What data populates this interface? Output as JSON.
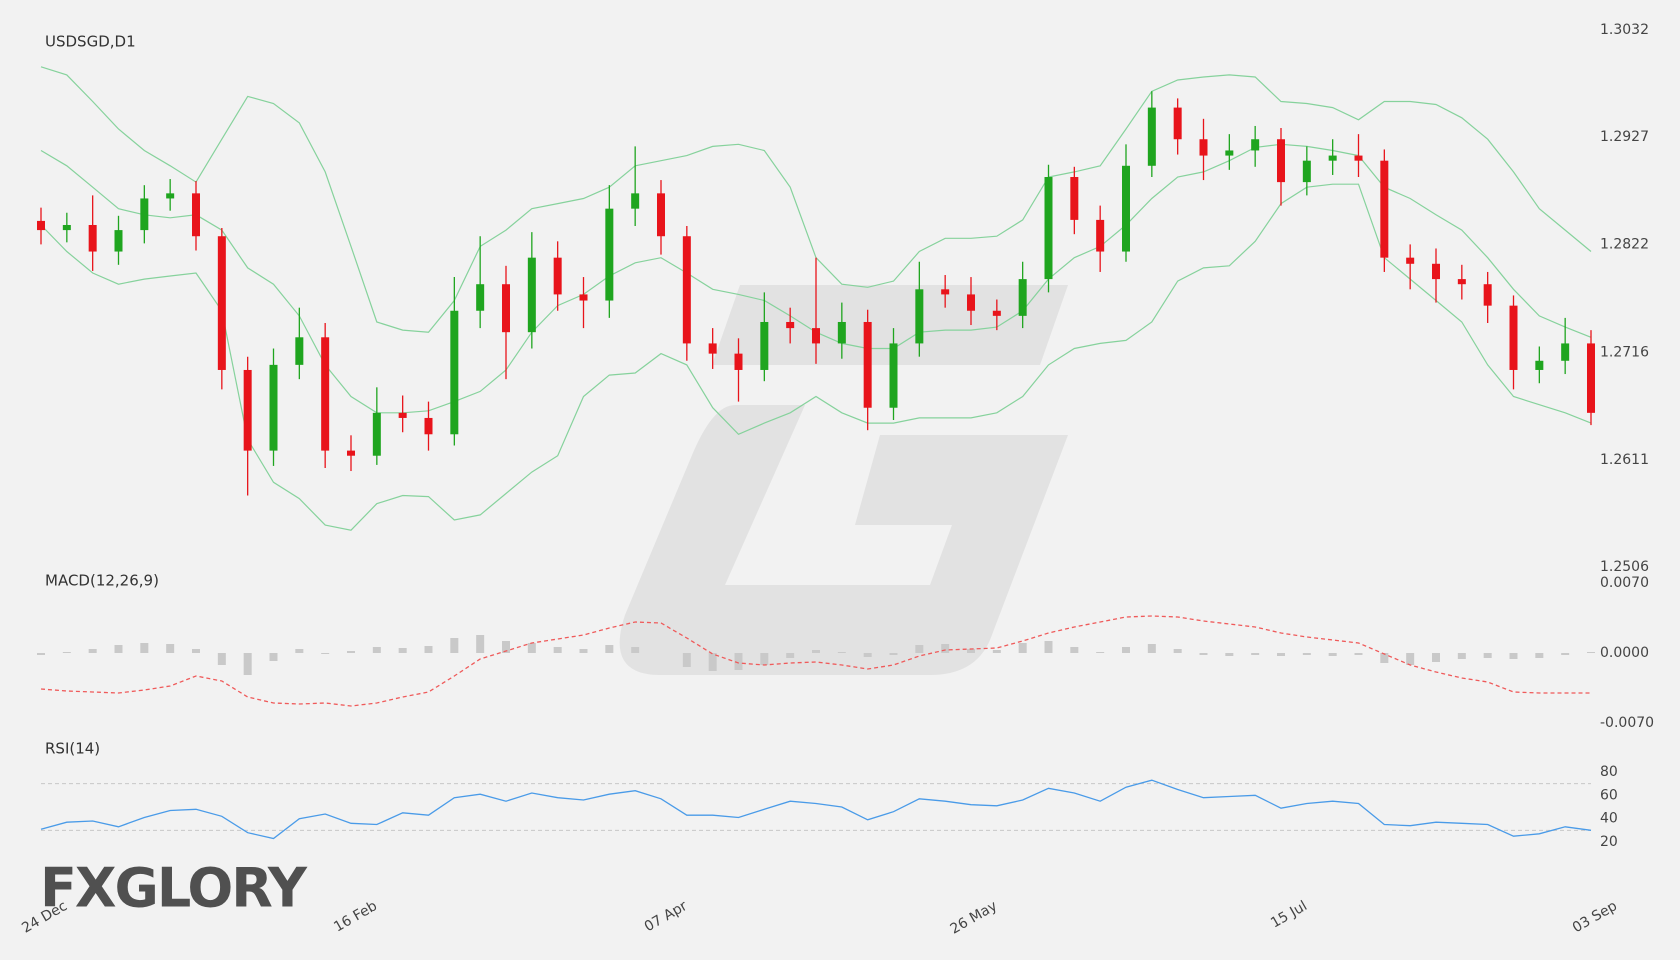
{
  "logo": "FXGLORY",
  "chart_data": [
    {
      "type": "candlestick",
      "title": "USDSGD,D1",
      "categories": [
        "24 Dec",
        null,
        null,
        null,
        null,
        null,
        null,
        null,
        null,
        null,
        null,
        null,
        "16 Feb",
        null,
        null,
        null,
        null,
        null,
        null,
        null,
        null,
        null,
        null,
        null,
        "07 Apr",
        null,
        null,
        null,
        null,
        null,
        null,
        null,
        null,
        null,
        null,
        null,
        "26 May",
        null,
        null,
        null,
        null,
        null,
        null,
        null,
        null,
        null,
        null,
        null,
        "15 Jul",
        null,
        null,
        null,
        null,
        null,
        null,
        null,
        null,
        null,
        null,
        null,
        "03 Sep"
      ],
      "open": [
        1.2845,
        1.2836,
        1.2841,
        1.2815,
        1.2836,
        1.2867,
        1.2872,
        1.283,
        1.2699,
        1.262,
        1.2704,
        1.2731,
        1.262,
        1.2615,
        1.2657,
        1.2652,
        1.2636,
        1.2757,
        1.2783,
        1.2736,
        1.2809,
        1.2773,
        1.2767,
        1.2857,
        1.2872,
        1.283,
        1.2725,
        1.2715,
        1.2699,
        1.2746,
        1.274,
        1.2725,
        1.2746,
        1.2662,
        1.2725,
        1.2778,
        1.2773,
        1.2757,
        1.2752,
        1.2788,
        1.2888,
        1.2846,
        1.2815,
        1.2899,
        1.2956,
        1.2925,
        1.2909,
        1.2914,
        1.2925,
        1.2883,
        1.2904,
        1.2909,
        1.2904,
        1.2809,
        1.2803,
        1.2788,
        1.2783,
        1.2762,
        1.2699,
        1.2708,
        1.2725
      ],
      "high": [
        1.2858,
        1.2853,
        1.287,
        1.285,
        1.288,
        1.2886,
        1.2884,
        1.2838,
        1.2712,
        1.272,
        1.276,
        1.2745,
        1.2635,
        1.2682,
        1.2674,
        1.2668,
        1.279,
        1.283,
        1.2801,
        1.2834,
        1.2825,
        1.279,
        1.288,
        1.2918,
        1.2885,
        1.284,
        1.274,
        1.273,
        1.2775,
        1.276,
        1.2809,
        1.2765,
        1.2758,
        1.274,
        1.2805,
        1.2792,
        1.279,
        1.2768,
        1.2805,
        1.29,
        1.2898,
        1.286,
        1.292,
        1.2972,
        1.2965,
        1.2945,
        1.293,
        1.2938,
        1.2936,
        1.2918,
        1.2925,
        1.293,
        1.2915,
        1.2822,
        1.2818,
        1.2802,
        1.2795,
        1.2772,
        1.2722,
        1.275,
        1.2738
      ],
      "low": [
        1.2822,
        1.2824,
        1.2796,
        1.2802,
        1.2823,
        1.2855,
        1.2816,
        1.268,
        1.2576,
        1.2605,
        1.269,
        1.2603,
        1.26,
        1.2606,
        1.2638,
        1.262,
        1.2625,
        1.274,
        1.269,
        1.272,
        1.2757,
        1.274,
        1.275,
        1.284,
        1.2812,
        1.2708,
        1.27,
        1.2668,
        1.2688,
        1.2725,
        1.2705,
        1.271,
        1.264,
        1.265,
        1.2712,
        1.276,
        1.2743,
        1.2738,
        1.274,
        1.2775,
        1.2832,
        1.2795,
        1.2805,
        1.2888,
        1.291,
        1.2885,
        1.2895,
        1.2898,
        1.286,
        1.287,
        1.289,
        1.2888,
        1.2795,
        1.2778,
        1.2765,
        1.2768,
        1.2745,
        1.268,
        1.2686,
        1.2695,
        1.2645
      ],
      "close": [
        1.2836,
        1.2841,
        1.2815,
        1.2836,
        1.2867,
        1.2872,
        1.283,
        1.2699,
        1.262,
        1.2704,
        1.2731,
        1.262,
        1.2615,
        1.2657,
        1.2652,
        1.2636,
        1.2757,
        1.2783,
        1.2736,
        1.2809,
        1.2773,
        1.2767,
        1.2857,
        1.2872,
        1.283,
        1.2725,
        1.2715,
        1.2699,
        1.2746,
        1.274,
        1.2725,
        1.2746,
        1.2662,
        1.2725,
        1.2778,
        1.2773,
        1.2757,
        1.2752,
        1.2788,
        1.2888,
        1.2846,
        1.2815,
        1.2899,
        1.2956,
        1.2925,
        1.2909,
        1.2914,
        1.2925,
        1.2883,
        1.2904,
        1.2909,
        1.2904,
        1.2809,
        1.2803,
        1.2788,
        1.2783,
        1.2762,
        1.2699,
        1.2708,
        1.2725,
        1.2657
      ],
      "up_color": "#1fa51f",
      "down_color": "#e8141b",
      "bands": {
        "color": "#86d29c",
        "upper": [
          1.2996,
          1.2988,
          1.2962,
          1.2935,
          1.2914,
          1.2899,
          1.2883,
          1.2925,
          1.2967,
          1.296,
          1.2941,
          1.2893,
          1.282,
          1.2746,
          1.2738,
          1.2736,
          1.2767,
          1.282,
          1.2836,
          1.2857,
          1.2862,
          1.2867,
          1.2878,
          1.2899,
          1.2904,
          1.2909,
          1.2918,
          1.292,
          1.2914,
          1.2878,
          1.2809,
          1.2783,
          1.278,
          1.2786,
          1.2815,
          1.2828,
          1.2828,
          1.283,
          1.2846,
          1.2888,
          1.2893,
          1.2899,
          1.2935,
          1.2972,
          1.2983,
          1.2986,
          1.2988,
          1.2986,
          1.2962,
          1.296,
          1.2956,
          1.2944,
          1.2962,
          1.2962,
          1.2959,
          1.2946,
          1.2925,
          1.2893,
          1.2857,
          1.2836,
          1.2815
        ],
        "middle": [
          1.2914,
          1.2899,
          1.2878,
          1.2857,
          1.2851,
          1.2848,
          1.2851,
          1.2836,
          1.2799,
          1.2783,
          1.2752,
          1.2704,
          1.2673,
          1.2657,
          1.2657,
          1.2659,
          1.2668,
          1.2678,
          1.2699,
          1.2736,
          1.2762,
          1.2773,
          1.2791,
          1.2804,
          1.2809,
          1.2794,
          1.2778,
          1.2773,
          1.2767,
          1.2752,
          1.2736,
          1.2725,
          1.272,
          1.272,
          1.2736,
          1.2738,
          1.2738,
          1.2741,
          1.2757,
          1.2788,
          1.2809,
          1.282,
          1.2841,
          1.2867,
          1.2888,
          1.2893,
          1.2904,
          1.2917,
          1.292,
          1.2918,
          1.2914,
          1.2909,
          1.2878,
          1.2867,
          1.2851,
          1.2836,
          1.2809,
          1.2778,
          1.2752,
          1.2741,
          1.2731
        ],
        "lower": [
          1.2841,
          1.2815,
          1.2794,
          1.2783,
          1.2788,
          1.2791,
          1.2794,
          1.2757,
          1.2631,
          1.2589,
          1.2573,
          1.2547,
          1.2542,
          1.2568,
          1.2576,
          1.2575,
          1.2552,
          1.2557,
          1.2578,
          1.2599,
          1.2615,
          1.2673,
          1.2694,
          1.2696,
          1.2715,
          1.2704,
          1.2662,
          1.2636,
          1.2647,
          1.2657,
          1.2673,
          1.2657,
          1.2647,
          1.2647,
          1.2652,
          1.2652,
          1.2652,
          1.2657,
          1.2673,
          1.2704,
          1.272,
          1.2725,
          1.2728,
          1.2746,
          1.2786,
          1.2799,
          1.2801,
          1.2825,
          1.2862,
          1.2878,
          1.2881,
          1.2881,
          1.2809,
          1.2788,
          1.2767,
          1.2746,
          1.2704,
          1.2673,
          1.2665,
          1.2657,
          1.2647
        ]
      },
      "ylim": [
        1.2506,
        1.3032
      ],
      "yticks": [
        1.3032,
        1.2927,
        1.2822,
        1.2716,
        1.2611,
        1.2506
      ]
    },
    {
      "type": "macd",
      "title": "MACD(12,26,9)",
      "histogram": {
        "color": "#c9c9c9",
        "values": [
          -0.0002,
          0.0001,
          0.0004,
          0.0008,
          0.001,
          0.0009,
          0.0004,
          -0.0012,
          -0.0022,
          -0.0008,
          0.0004,
          -0.0001,
          0.0002,
          0.0006,
          0.0005,
          0.0007,
          0.0015,
          0.0018,
          0.0012,
          0.001,
          0.0006,
          0.0004,
          0.0008,
          0.0006,
          0.0,
          -0.0014,
          -0.0018,
          -0.0017,
          -0.0012,
          -0.0005,
          0.0003,
          0.0001,
          -0.0004,
          -0.0002,
          0.0008,
          0.0009,
          0.0004,
          0.0003,
          0.001,
          0.0012,
          0.0006,
          0.0001,
          0.0006,
          0.0009,
          0.0004,
          -0.0002,
          -0.0003,
          -0.0002,
          -0.0003,
          -0.0002,
          -0.0003,
          -0.0002,
          -0.001,
          -0.0012,
          -0.0009,
          -0.0006,
          -0.0005,
          -0.0006,
          -0.0005,
          -0.0002,
          0.0001
        ]
      },
      "signal": {
        "color": "#ef5a5a",
        "values": [
          -0.0036,
          -0.0038,
          -0.0039,
          -0.004,
          -0.0037,
          -0.0033,
          -0.0023,
          -0.0028,
          -0.0044,
          -0.005,
          -0.0051,
          -0.005,
          -0.0053,
          -0.005,
          -0.0044,
          -0.0039,
          -0.0023,
          -0.0006,
          0.0002,
          0.001,
          0.0014,
          0.0018,
          0.0025,
          0.0031,
          0.003,
          0.0015,
          -0.0001,
          -0.001,
          -0.0012,
          -0.001,
          -0.0009,
          -0.0012,
          -0.0016,
          -0.0012,
          -0.0003,
          0.0003,
          0.0004,
          0.0005,
          0.0012,
          0.002,
          0.0026,
          0.0031,
          0.0036,
          0.0037,
          0.0036,
          0.0032,
          0.0029,
          0.0026,
          0.002,
          0.0016,
          0.0013,
          0.001,
          -0.0001,
          -0.0012,
          -0.0019,
          -0.0025,
          -0.0029,
          -0.0039,
          -0.004,
          -0.004,
          -0.004
        ]
      },
      "ylim": [
        -0.007,
        0.007
      ],
      "yticks": [
        {
          "value": 0.007,
          "label": "0.0070"
        },
        {
          "value": 0,
          "label": "0.0000"
        },
        {
          "value": -0.007,
          "label": "-0.0070"
        }
      ]
    },
    {
      "type": "line",
      "title": "RSI(14)",
      "color": "#4a9be8",
      "values": [
        31,
        37,
        38,
        33,
        41,
        47,
        48,
        42,
        28,
        23,
        40,
        44,
        36,
        35,
        45,
        43,
        58,
        61,
        55,
        62,
        58,
        56,
        61,
        64,
        57,
        43,
        43,
        41,
        48,
        55,
        53,
        50,
        39,
        46,
        57,
        55,
        52,
        51,
        56,
        66,
        62,
        55,
        67,
        73,
        65,
        58,
        59,
        60,
        49,
        53,
        55,
        53,
        35,
        34,
        37,
        36,
        35,
        25,
        27,
        33,
        30
      ],
      "levels": [
        70,
        30
      ],
      "ylim": [
        20,
        80
      ],
      "yticks": [
        80,
        60,
        40,
        20
      ]
    }
  ]
}
